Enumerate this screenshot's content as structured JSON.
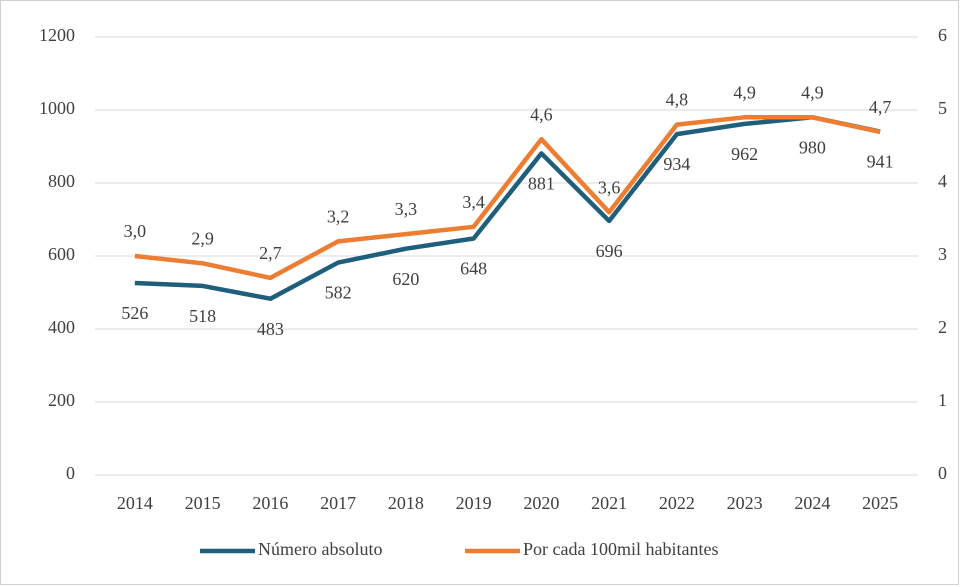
{
  "chart_data": {
    "type": "line",
    "categories": [
      "2014",
      "2015",
      "2016",
      "2017",
      "2018",
      "2019",
      "2020",
      "2021",
      "2022",
      "2023",
      "2024",
      "2025"
    ],
    "series": [
      {
        "name": "Número absoluto",
        "color": "#1f5f7c",
        "values": [
          526,
          518,
          483,
          582,
          620,
          648,
          881,
          696,
          934,
          962,
          980,
          941
        ]
      },
      {
        "name": "Por cada 100mil habitantes",
        "color": "#ed7d31",
        "axis": "y2",
        "values": [
          3.0,
          2.9,
          2.7,
          3.2,
          3.3,
          3.4,
          4.6,
          3.6,
          4.8,
          4.9,
          4.9,
          4.7
        ],
        "value_labels": [
          "3,0",
          "2,9",
          "2,7",
          "3,2",
          "3,3",
          "3,4",
          "4,6",
          "3,6",
          "4,8",
          "4,9",
          "4,9",
          "4,7"
        ]
      }
    ],
    "ylim": [
      0,
      1200
    ],
    "yticks": [
      0,
      200,
      400,
      600,
      800,
      1000,
      1200
    ],
    "y2lim": [
      0,
      6
    ],
    "y2ticks": [
      0,
      1,
      2,
      3,
      4,
      5,
      6
    ],
    "grid": true,
    "legend": "bottom"
  }
}
